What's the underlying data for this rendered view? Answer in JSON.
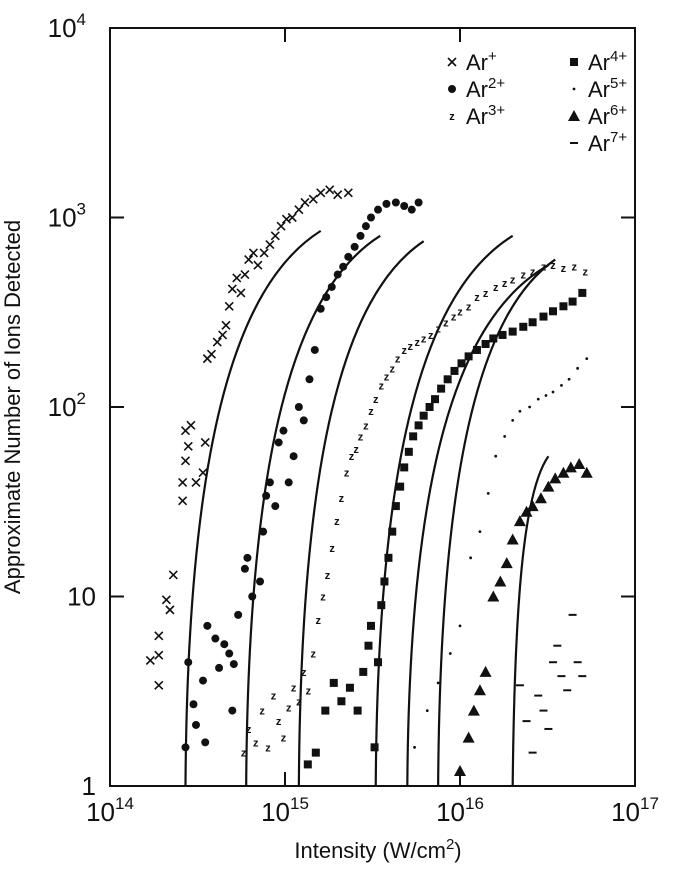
{
  "chart_data": {
    "type": "scatter",
    "title": "",
    "xlabel": "Intensity (W/cm",
    "xlabel_sup": "2",
    "xlabel_end": ")",
    "ylabel": "Approximate Number of Ions Detected",
    "x_scale": "log",
    "y_scale": "log",
    "xlim": [
      100000000000000.0,
      1e+17
    ],
    "ylim": [
      1,
      10000
    ],
    "x_ticks": [
      {
        "value": 100000000000000.0,
        "base": "10",
        "exp": "14"
      },
      {
        "value": 1000000000000000.0,
        "base": "10",
        "exp": "15"
      },
      {
        "value": 1e+16,
        "base": "10",
        "exp": "16"
      },
      {
        "value": 1e+17,
        "base": "10",
        "exp": "17"
      }
    ],
    "y_ticks": [
      {
        "value": 1,
        "base": "1",
        "exp": ""
      },
      {
        "value": 10,
        "base": "10",
        "exp": ""
      },
      {
        "value": 100,
        "base": "10",
        "exp": "2"
      },
      {
        "value": 1000,
        "base": "10",
        "exp": "3"
      },
      {
        "value": 10000,
        "base": "10",
        "exp": "4"
      }
    ],
    "grid": false,
    "legend_position": "top-right",
    "series": [
      {
        "name": "Ar",
        "charge": "+",
        "marker": "x",
        "points": [
          [
            170000000000000.0,
            4.6
          ],
          [
            190000000000000.0,
            3.4
          ],
          [
            190000000000000.0,
            6.2
          ],
          [
            190000000000000.0,
            4.9
          ],
          [
            210000000000000.0,
            9.6
          ],
          [
            220000000000000.0,
            8.5
          ],
          [
            230000000000000.0,
            13
          ],
          [
            260000000000000.0,
            32
          ],
          [
            260000000000000.0,
            40
          ],
          [
            270000000000000.0,
            52
          ],
          [
            270000000000000.0,
            75
          ],
          [
            280000000000000.0,
            62
          ],
          [
            290000000000000.0,
            80
          ],
          [
            310000000000000.0,
            40
          ],
          [
            340000000000000.0,
            45
          ],
          [
            350000000000000.0,
            65
          ],
          [
            360000000000000.0,
            180
          ],
          [
            380000000000000.0,
            190
          ],
          [
            410000000000000.0,
            220
          ],
          [
            440000000000000.0,
            240
          ],
          [
            460000000000000.0,
            270
          ],
          [
            480000000000000.0,
            340
          ],
          [
            500000000000000.0,
            420
          ],
          [
            530000000000000.0,
            480
          ],
          [
            560000000000000.0,
            400
          ],
          [
            590000000000000.0,
            500
          ],
          [
            620000000000000.0,
            600
          ],
          [
            660000000000000.0,
            650
          ],
          [
            700000000000000.0,
            560
          ],
          [
            760000000000000.0,
            650
          ],
          [
            820000000000000.0,
            720
          ],
          [
            880000000000000.0,
            800
          ],
          [
            950000000000000.0,
            900
          ],
          [
            1020000000000000.0,
            980
          ],
          [
            1100000000000000.0,
            1000
          ],
          [
            1200000000000000.0,
            1100
          ],
          [
            1300000000000000.0,
            1200
          ],
          [
            1450000000000000.0,
            1250
          ],
          [
            1600000000000000.0,
            1350
          ],
          [
            1800000000000000.0,
            1400
          ],
          [
            2000000000000000.0,
            1320
          ],
          [
            2300000000000000.0,
            1350
          ]
        ]
      },
      {
        "name": "Ar",
        "charge": "2+",
        "marker": "dot",
        "points": [
          [
            270000000000000.0,
            1.6
          ],
          [
            280000000000000.0,
            4.5
          ],
          [
            300000000000000.0,
            2.7
          ],
          [
            310000000000000.0,
            2.1
          ],
          [
            340000000000000.0,
            3.6
          ],
          [
            350000000000000.0,
            1.7
          ],
          [
            360000000000000.0,
            7
          ],
          [
            400000000000000.0,
            6
          ],
          [
            420000000000000.0,
            4.2
          ],
          [
            450000000000000.0,
            5.6
          ],
          [
            480000000000000.0,
            5
          ],
          [
            500000000000000.0,
            2.5
          ],
          [
            510000000000000.0,
            4.4
          ],
          [
            540000000000000.0,
            8
          ],
          [
            590000000000000.0,
            14
          ],
          [
            610000000000000.0,
            16
          ],
          [
            650000000000000.0,
            10
          ],
          [
            720000000000000.0,
            12
          ],
          [
            750000000000000.0,
            22
          ],
          [
            780000000000000.0,
            34
          ],
          [
            820000000000000.0,
            40
          ],
          [
            880000000000000.0,
            30
          ],
          [
            920000000000000.0,
            65
          ],
          [
            980000000000000.0,
            75
          ],
          [
            1050000000000000.0,
            40
          ],
          [
            1120000000000000.0,
            55
          ],
          [
            1200000000000000.0,
            100
          ],
          [
            1280000000000000.0,
            85
          ],
          [
            1380000000000000.0,
            140
          ],
          [
            1480000000000000.0,
            200
          ],
          [
            1600000000000000.0,
            330
          ],
          [
            1720000000000000.0,
            380
          ],
          [
            1850000000000000.0,
            430
          ],
          [
            2000000000000000.0,
            500
          ],
          [
            2150000000000000.0,
            550
          ],
          [
            2300000000000000.0,
            620
          ],
          [
            2500000000000000.0,
            700
          ],
          [
            2700000000000000.0,
            800
          ],
          [
            2900000000000000.0,
            900
          ],
          [
            3100000000000000.0,
            1000
          ],
          [
            3400000000000000.0,
            1100
          ],
          [
            3800000000000000.0,
            1180
          ],
          [
            4300000000000000.0,
            1200
          ],
          [
            4800000000000000.0,
            1150
          ],
          [
            5300000000000000.0,
            1100
          ],
          [
            5800000000000000.0,
            1200
          ]
        ]
      },
      {
        "name": "Ar",
        "charge": "3+",
        "marker": "z",
        "points": [
          [
            580000000000000.0,
            1.5
          ],
          [
            620000000000000.0,
            2
          ],
          [
            680000000000000.0,
            1.7
          ],
          [
            740000000000000.0,
            2.5
          ],
          [
            800000000000000.0,
            1.6
          ],
          [
            860000000000000.0,
            3
          ],
          [
            920000000000000.0,
            2.2
          ],
          [
            980000000000000.0,
            1.8
          ],
          [
            1050000000000000.0,
            2.6
          ],
          [
            1120000000000000.0,
            3.3
          ],
          [
            1200000000000000.0,
            2.8
          ],
          [
            1280000000000000.0,
            4
          ],
          [
            1360000000000000.0,
            3.2
          ],
          [
            1450000000000000.0,
            5
          ],
          [
            1550000000000000.0,
            7.5
          ],
          [
            1650000000000000.0,
            10
          ],
          [
            1750000000000000.0,
            13
          ],
          [
            1860000000000000.0,
            18
          ],
          [
            1980000000000000.0,
            25
          ],
          [
            2100000000000000.0,
            33
          ],
          [
            2250000000000000.0,
            45
          ],
          [
            2400000000000000.0,
            55
          ],
          [
            2550000000000000.0,
            60
          ],
          [
            2700000000000000.0,
            70
          ],
          [
            2900000000000000.0,
            80
          ],
          [
            3100000000000000.0,
            95
          ],
          [
            3300000000000000.0,
            110
          ],
          [
            3550000000000000.0,
            130
          ],
          [
            3800000000000000.0,
            145
          ],
          [
            4100000000000000.0,
            160
          ],
          [
            4400000000000000.0,
            180
          ],
          [
            4800000000000000.0,
            200
          ],
          [
            5200000000000000.0,
            210
          ],
          [
            5700000000000000.0,
            220
          ],
          [
            6200000000000000.0,
            230
          ],
          [
            6800000000000000.0,
            240
          ],
          [
            7500000000000000.0,
            260
          ],
          [
            8300000000000000.0,
            280
          ],
          [
            9200000000000000.0,
            300
          ],
          [
            1e+16,
            320
          ],
          [
            1.12e+16,
            340
          ],
          [
            1.25e+16,
            380
          ],
          [
            1.4e+16,
            400
          ],
          [
            1.6e+16,
            430
          ],
          [
            1.8e+16,
            450
          ],
          [
            2e+16,
            470
          ],
          [
            2.3e+16,
            500
          ],
          [
            2.6e+16,
            520
          ],
          [
            3e+16,
            550
          ],
          [
            3.4e+16,
            560
          ],
          [
            3.9e+16,
            540
          ],
          [
            4.5e+16,
            550
          ],
          [
            5.2e+16,
            520
          ]
        ]
      },
      {
        "name": "Ar",
        "charge": "4+",
        "marker": "square",
        "points": [
          [
            1350000000000000.0,
            1.3
          ],
          [
            1500000000000000.0,
            1.5
          ],
          [
            1700000000000000.0,
            2.5
          ],
          [
            1900000000000000.0,
            3.5
          ],
          [
            2100000000000000.0,
            2.8
          ],
          [
            2350000000000000.0,
            3.3
          ],
          [
            2600000000000000.0,
            2.5
          ],
          [
            2800000000000000.0,
            4
          ],
          [
            3000000000000000.0,
            5.5
          ],
          [
            3100000000000000.0,
            7
          ],
          [
            3250000000000000.0,
            1.6
          ],
          [
            3400000000000000.0,
            4.5
          ],
          [
            3550000000000000.0,
            9
          ],
          [
            3700000000000000.0,
            12
          ],
          [
            3900000000000000.0,
            16
          ],
          [
            4100000000000000.0,
            22
          ],
          [
            4300000000000000.0,
            30
          ],
          [
            4550000000000000.0,
            38
          ],
          [
            4800000000000000.0,
            48
          ],
          [
            5100000000000000.0,
            58
          ],
          [
            5400000000000000.0,
            70
          ],
          [
            5800000000000000.0,
            80
          ],
          [
            6200000000000000.0,
            90
          ],
          [
            6700000000000000.0,
            100
          ],
          [
            7200000000000000.0,
            110
          ],
          [
            7800000000000000.0,
            125
          ],
          [
            8500000000000000.0,
            140
          ],
          [
            9300000000000000.0,
            155
          ],
          [
            1.02e+16,
            170
          ],
          [
            1.12e+16,
            185
          ],
          [
            1.25e+16,
            200
          ],
          [
            1.4e+16,
            215
          ],
          [
            1.55e+16,
            230
          ],
          [
            1.75e+16,
            240
          ],
          [
            2e+16,
            250
          ],
          [
            2.3e+16,
            265
          ],
          [
            2.6e+16,
            280
          ],
          [
            3e+16,
            300
          ],
          [
            3.4e+16,
            320
          ],
          [
            3.9e+16,
            340
          ],
          [
            4.4e+16,
            360
          ],
          [
            5e+16,
            400
          ]
        ]
      },
      {
        "name": "Ar",
        "charge": "5+",
        "marker": "small-dot",
        "points": [
          [
            5500000000000000.0,
            1.6
          ],
          [
            6500000000000000.0,
            2.5
          ],
          [
            7500000000000000.0,
            3.5
          ],
          [
            8800000000000000.0,
            5
          ],
          [
            1e+16,
            7
          ],
          [
            1.15e+16,
            16
          ],
          [
            1.3e+16,
            22
          ],
          [
            1.45e+16,
            35
          ],
          [
            1.6e+16,
            55
          ],
          [
            1.8e+16,
            70
          ],
          [
            2e+16,
            85
          ],
          [
            2.2e+16,
            95
          ],
          [
            2.5e+16,
            100
          ],
          [
            2.8e+16,
            110
          ],
          [
            3.1e+16,
            115
          ],
          [
            3.4e+16,
            120
          ],
          [
            3.8e+16,
            130
          ],
          [
            4.2e+16,
            140
          ],
          [
            4.7e+16,
            160
          ],
          [
            5.3e+16,
            180
          ]
        ]
      },
      {
        "name": "Ar",
        "charge": "6+",
        "marker": "triangle",
        "points": [
          [
            1e+16,
            1.2
          ],
          [
            1.12e+16,
            1.8
          ],
          [
            1.2e+16,
            2.5
          ],
          [
            1.3e+16,
            3.2
          ],
          [
            1.4e+16,
            4
          ],
          [
            1.55e+16,
            10
          ],
          [
            1.7e+16,
            12
          ],
          [
            1.85e+16,
            15
          ],
          [
            2e+16,
            20
          ],
          [
            2.2e+16,
            25
          ],
          [
            2.4e+16,
            28
          ],
          [
            2.6e+16,
            30
          ],
          [
            2.9e+16,
            33
          ],
          [
            3.2e+16,
            38
          ],
          [
            3.5e+16,
            42
          ],
          [
            3.9e+16,
            45
          ],
          [
            4.3e+16,
            48
          ],
          [
            4.8e+16,
            50
          ],
          [
            5.3e+16,
            45
          ]
        ]
      },
      {
        "name": "Ar",
        "charge": "7+",
        "marker": "dash",
        "points": [
          [
            2.2e+16,
            3.4
          ],
          [
            2.4e+16,
            2.2
          ],
          [
            2.6e+16,
            1.5
          ],
          [
            2.8e+16,
            3
          ],
          [
            3e+16,
            2.5
          ],
          [
            3.2e+16,
            2
          ],
          [
            3.4e+16,
            4.5
          ],
          [
            3.6e+16,
            5.5
          ],
          [
            3.8e+16,
            3.8
          ],
          [
            4.1e+16,
            3.2
          ],
          [
            4.4e+16,
            8
          ],
          [
            4.7e+16,
            4.5
          ],
          [
            5e+16,
            3.8
          ]
        ]
      }
    ],
    "fit_curves": [
      {
        "x0": 270000000000000.0,
        "x1": 1600000000000000.0,
        "y1": 850
      },
      {
        "x0": 600000000000000.0,
        "x1": 3500000000000000.0,
        "y1": 800
      },
      {
        "x0": 1200000000000000.0,
        "x1": 6200000000000000.0,
        "y1": 750
      },
      {
        "x0": 3300000000000000.0,
        "x1": 2e+16,
        "y1": 800
      },
      {
        "x0": 5000000000000000.0,
        "x1": 3.2e+16,
        "y1": 560
      },
      {
        "x0": 7500000000000000.0,
        "x1": 3.5e+16,
        "y1": 600
      },
      {
        "x0": 2e+16,
        "x1": 3.2e+16,
        "y1": 55
      }
    ]
  }
}
